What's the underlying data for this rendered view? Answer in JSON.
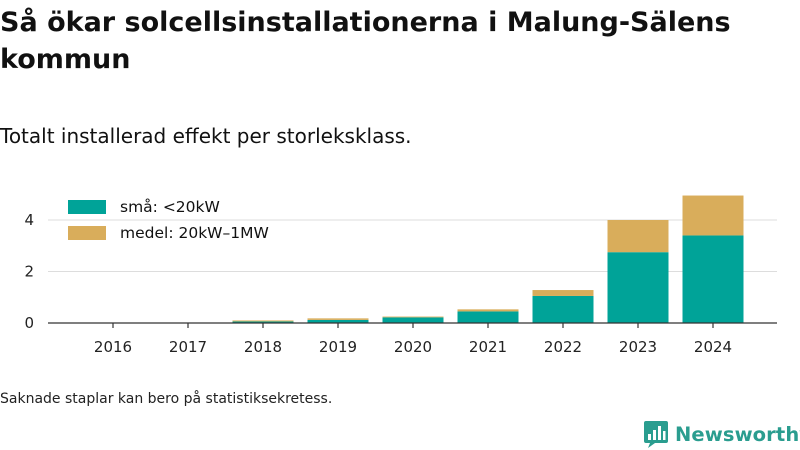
{
  "title": "Så ökar solcellsinstallationerna i Malung-Sälens kommun",
  "subtitle": "Totalt installerad effekt per storleksklass.",
  "footnote": "Saknade staplar kan bero på statistiksekretess.",
  "brand": {
    "name": "Newsworthy",
    "icon": "newsworthy-logo-icon",
    "color": "#2a9d8f"
  },
  "chart_data": {
    "type": "bar",
    "stacked": true,
    "categories": [
      "2016",
      "2017",
      "2018",
      "2019",
      "2020",
      "2021",
      "2022",
      "2023",
      "2024"
    ],
    "series": [
      {
        "name": "små: <20kW",
        "color": "#00a398",
        "values": [
          0,
          0,
          0.06,
          0.12,
          0.22,
          0.45,
          1.05,
          2.75,
          3.4
        ]
      },
      {
        "name": "medel: 20kW–1MW",
        "color": "#d9ad5b",
        "values": [
          0,
          0,
          0.04,
          0.06,
          0.03,
          0.08,
          0.23,
          1.25,
          1.55
        ]
      }
    ],
    "yticks": [
      0,
      2,
      4
    ],
    "ylim": [
      0,
      5
    ],
    "xlabel": "",
    "ylabel": "",
    "grid": true,
    "legend": "top-left"
  }
}
